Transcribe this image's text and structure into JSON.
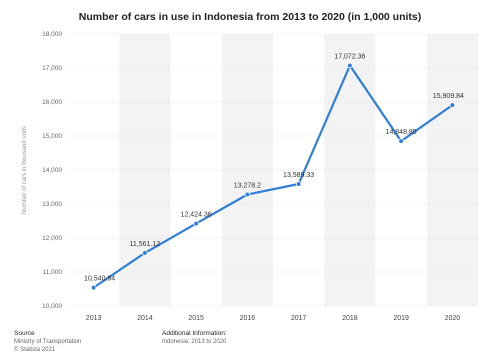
{
  "chart_data": {
    "type": "line",
    "title": "Number of cars in use in Indonesia from 2013 to 2020 (in 1,000 units)",
    "xlabel": "",
    "ylabel": "Number of cars in thousand units",
    "categories": [
      "2013",
      "2014",
      "2015",
      "2016",
      "2017",
      "2018",
      "2019",
      "2020"
    ],
    "series": [
      {
        "values": [
          10540.94,
          11561.12,
          12424.36,
          13278.2,
          13589.33,
          17072.36,
          14848.85,
          15909.84
        ],
        "value_labels": [
          "10,540.94",
          "11,561.12",
          "12,424.36",
          "13,278.2",
          "13,589.33",
          "17,072.36",
          "14,848.85",
          "15,909.84"
        ]
      }
    ],
    "ylim": [
      10000,
      18000
    ],
    "y_ticks": [
      10000,
      11000,
      12000,
      13000,
      14000,
      15000,
      16000,
      17000,
      18000
    ],
    "y_tick_labels": [
      "10,000",
      "11,000",
      "12,000",
      "13,000",
      "14,000",
      "15,000",
      "16,000",
      "17,000",
      "18,000"
    ],
    "grid": true,
    "legend": "none",
    "line_color": "#2f7ed8"
  },
  "footer": {
    "source_heading": "Source",
    "source_lines": [
      "Ministry of Transportation",
      "© Statista 2021"
    ],
    "info_heading": "Additional Information:",
    "info_lines": [
      "Indonesia; 2013 to 2020"
    ]
  }
}
